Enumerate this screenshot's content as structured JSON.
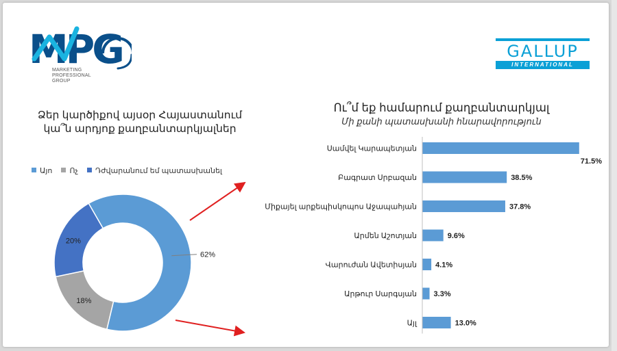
{
  "logos": {
    "mpg": {
      "letters": "MPG",
      "caption_lines": [
        "MARKETING",
        "PROFESSIONAL",
        "GROUP"
      ]
    },
    "gallup": {
      "word": "GALLUP",
      "band": "INTERNATIONAL"
    }
  },
  "colors": {
    "yes": "#5b9bd5",
    "no": "#a5a5a5",
    "hard": "#4472c4",
    "bar": "#5b9bd5",
    "arrow": "#e02020",
    "mpg_blue": "#0a4f8a",
    "mpg_cyan": "#1ab3e0",
    "gallup": "#0aa0d6"
  },
  "left_title_lines": [
    "Ձեր կարծիքով այսօր Հայաստանում",
    "կա՞ն արդյոք քաղբանտարկյալներ"
  ],
  "chart_data": [
    {
      "type": "pie",
      "donut": true,
      "legend_position": "top-left",
      "title": "Ձեր կարծիքով այսօր Հայաստանում կա՞ն արդյոք քաղբանտարկյալներ",
      "categories": [
        "Այո",
        "Ոչ",
        "Դժվարանում եմ պատասխանել"
      ],
      "values": [
        62,
        18,
        20
      ],
      "labels": [
        "62%",
        "18%",
        "20%"
      ]
    },
    {
      "type": "bar",
      "orientation": "horizontal",
      "title": "Ու՞մ եք համարում քաղբանտարկյալ",
      "subtitle": "Մի քանի պատասխանի հնարավորություն",
      "categories": [
        "Սամվել Կարապետյան",
        "Բագրատ Սրբազան",
        "Միքայել արքեպիսկոպոս Աջապահյան",
        "Արմեն Աշոտյան",
        "Վարուժան Ավետիսյան",
        "Արթուր Սարգսյան",
        "Այլ"
      ],
      "values": [
        71.5,
        38.5,
        37.8,
        9.6,
        4.1,
        3.3,
        13.0
      ],
      "labels": [
        "71.5%",
        "38.5%",
        "37.8%",
        "9.6%",
        "4.1%",
        "3.3%",
        "13.0%"
      ],
      "xlim": [
        0,
        100
      ]
    }
  ]
}
